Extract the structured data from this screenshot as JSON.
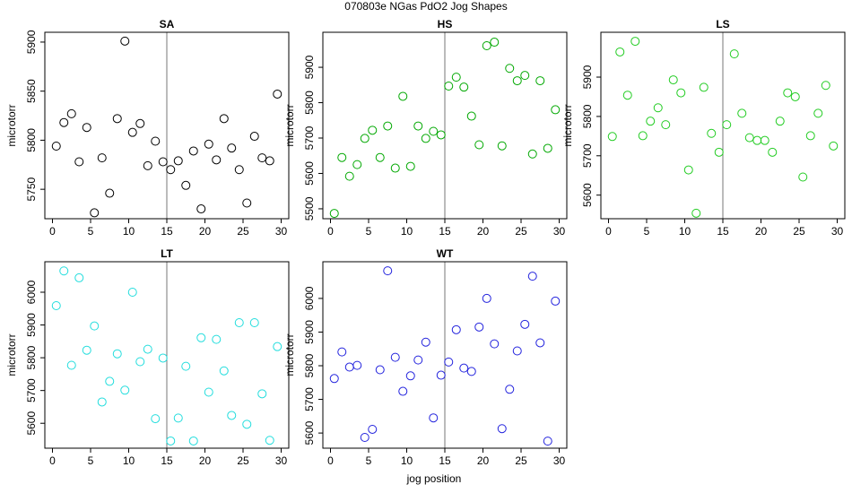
{
  "title": "070803e   NGas PdO2 Jog Shapes",
  "xlabel": "jog position",
  "chart_data": [
    {
      "type": "scatter",
      "title": "SA",
      "ylabel": "microtorr",
      "color": "#000000",
      "x": [
        0.5,
        1.5,
        2.5,
        3.5,
        4.5,
        5.5,
        6.5,
        7.5,
        8.5,
        9.5,
        10.5,
        11.5,
        12.5,
        13.5,
        14.5,
        15.5,
        16.5,
        17.5,
        18.5,
        19.5,
        20.5,
        21.5,
        22.5,
        23.5,
        24.5,
        25.5,
        26.5,
        27.5,
        28.5,
        29.5
      ],
      "values": [
        5794,
        5818,
        5827,
        5778,
        5813,
        5726,
        5782,
        5746,
        5822,
        5901,
        5808,
        5817,
        5774,
        5799,
        5778,
        5770,
        5779,
        5754,
        5789,
        5730,
        5796,
        5780,
        5822,
        5792,
        5770,
        5736,
        5804,
        5782,
        5779,
        5847
      ],
      "xlim": [
        -1,
        31
      ],
      "ylim": [
        5720,
        5910
      ],
      "xticks": [
        0,
        5,
        10,
        15,
        20,
        25,
        30
      ],
      "yticks": [
        5750,
        5800,
        5850,
        5900
      ],
      "vlines": [
        15
      ]
    },
    {
      "type": "scatter",
      "title": "HS",
      "ylabel": "microtorr",
      "color": "#00a800",
      "x": [
        0.5,
        1.5,
        2.5,
        3.5,
        4.5,
        5.5,
        6.5,
        7.5,
        8.5,
        9.5,
        10.5,
        11.5,
        12.5,
        13.5,
        14.5,
        15.5,
        16.5,
        17.5,
        18.5,
        19.5,
        20.5,
        21.5,
        22.5,
        23.5,
        24.5,
        25.5,
        26.5,
        27.5,
        28.5,
        29.5
      ],
      "values": [
        5487,
        5645,
        5592,
        5625,
        5699,
        5722,
        5645,
        5734,
        5615,
        5818,
        5620,
        5734,
        5699,
        5719,
        5709,
        5847,
        5872,
        5844,
        5762,
        5681,
        5961,
        5971,
        5678,
        5897,
        5862,
        5877,
        5655,
        5862,
        5671,
        5780
      ],
      "xlim": [
        -1,
        31
      ],
      "ylim": [
        5472,
        5999
      ],
      "xticks": [
        0,
        5,
        10,
        15,
        20,
        25,
        30
      ],
      "yticks": [
        5500,
        5600,
        5700,
        5800,
        5900
      ],
      "vlines": [
        15
      ]
    },
    {
      "type": "scatter",
      "title": "LS",
      "ylabel": "microtorr",
      "color": "#22cc22",
      "x": [
        0.5,
        1.5,
        2.5,
        3.5,
        4.5,
        5.5,
        6.5,
        7.5,
        8.5,
        9.5,
        10.5,
        11.5,
        12.5,
        13.5,
        14.5,
        15.5,
        16.5,
        17.5,
        18.5,
        19.5,
        20.5,
        21.5,
        22.5,
        23.5,
        24.5,
        25.5,
        26.5,
        27.5,
        28.5,
        29.5
      ],
      "values": [
        5749,
        5964,
        5854,
        5991,
        5751,
        5788,
        5822,
        5779,
        5893,
        5860,
        5664,
        5554,
        5874,
        5757,
        5709,
        5779,
        5959,
        5808,
        5746,
        5739,
        5739,
        5709,
        5788,
        5860,
        5850,
        5646,
        5751,
        5808,
        5879,
        5725
      ],
      "xlim": [
        -1,
        31
      ],
      "ylim": [
        5540,
        6014
      ],
      "xticks": [
        0,
        5,
        10,
        15,
        20,
        25,
        30
      ],
      "yticks": [
        5600,
        5700,
        5800,
        5900
      ],
      "vlines": [
        15
      ]
    },
    {
      "type": "scatter",
      "title": "LT",
      "ylabel": "microtorr",
      "color": "#22dddd",
      "x": [
        0.5,
        1.5,
        2.5,
        3.5,
        4.5,
        5.5,
        6.5,
        7.5,
        8.5,
        9.5,
        10.5,
        11.5,
        12.5,
        13.5,
        14.5,
        15.5,
        16.5,
        17.5,
        18.5,
        19.5,
        20.5,
        21.5,
        22.5,
        23.5,
        24.5,
        25.5,
        26.5,
        27.5,
        28.5,
        29.5
      ],
      "values": [
        5959,
        6065,
        5777,
        6044,
        5823,
        5897,
        5665,
        5728,
        5812,
        5701,
        6000,
        5788,
        5826,
        5614,
        5799,
        5546,
        5616,
        5774,
        5546,
        5861,
        5695,
        5856,
        5760,
        5624,
        5907,
        5597,
        5907,
        5690,
        5548,
        5834
      ],
      "xlim": [
        -1,
        31
      ],
      "ylim": [
        5524,
        6093
      ],
      "xticks": [
        0,
        5,
        10,
        15,
        20,
        25,
        30
      ],
      "yticks": [
        5600,
        5700,
        5800,
        5900,
        6000
      ],
      "vlines": [
        15
      ]
    },
    {
      "type": "scatter",
      "title": "WT",
      "ylabel": "microtorr",
      "color": "#2222dd",
      "x": [
        0.5,
        1.5,
        2.5,
        3.5,
        4.5,
        5.5,
        6.5,
        7.5,
        8.5,
        9.5,
        10.5,
        11.5,
        12.5,
        13.5,
        14.5,
        15.5,
        16.5,
        17.5,
        18.5,
        19.5,
        20.5,
        21.5,
        22.5,
        23.5,
        24.5,
        25.5,
        26.5,
        27.5,
        28.5,
        29.5
      ],
      "values": [
        5762,
        5841,
        5796,
        5801,
        5587,
        5611,
        5788,
        6082,
        5825,
        5724,
        5770,
        5817,
        5870,
        5645,
        5772,
        5811,
        5907,
        5793,
        5783,
        5915,
        6000,
        5865,
        5613,
        5730,
        5844,
        5923,
        6066,
        5868,
        5576,
        5992
      ],
      "xlim": [
        -1,
        31
      ],
      "ylim": [
        5555,
        6109
      ],
      "xticks": [
        0,
        5,
        10,
        15,
        20,
        25,
        30
      ],
      "yticks": [
        5600,
        5700,
        5800,
        5900,
        6000
      ],
      "vlines": [
        15
      ]
    }
  ]
}
